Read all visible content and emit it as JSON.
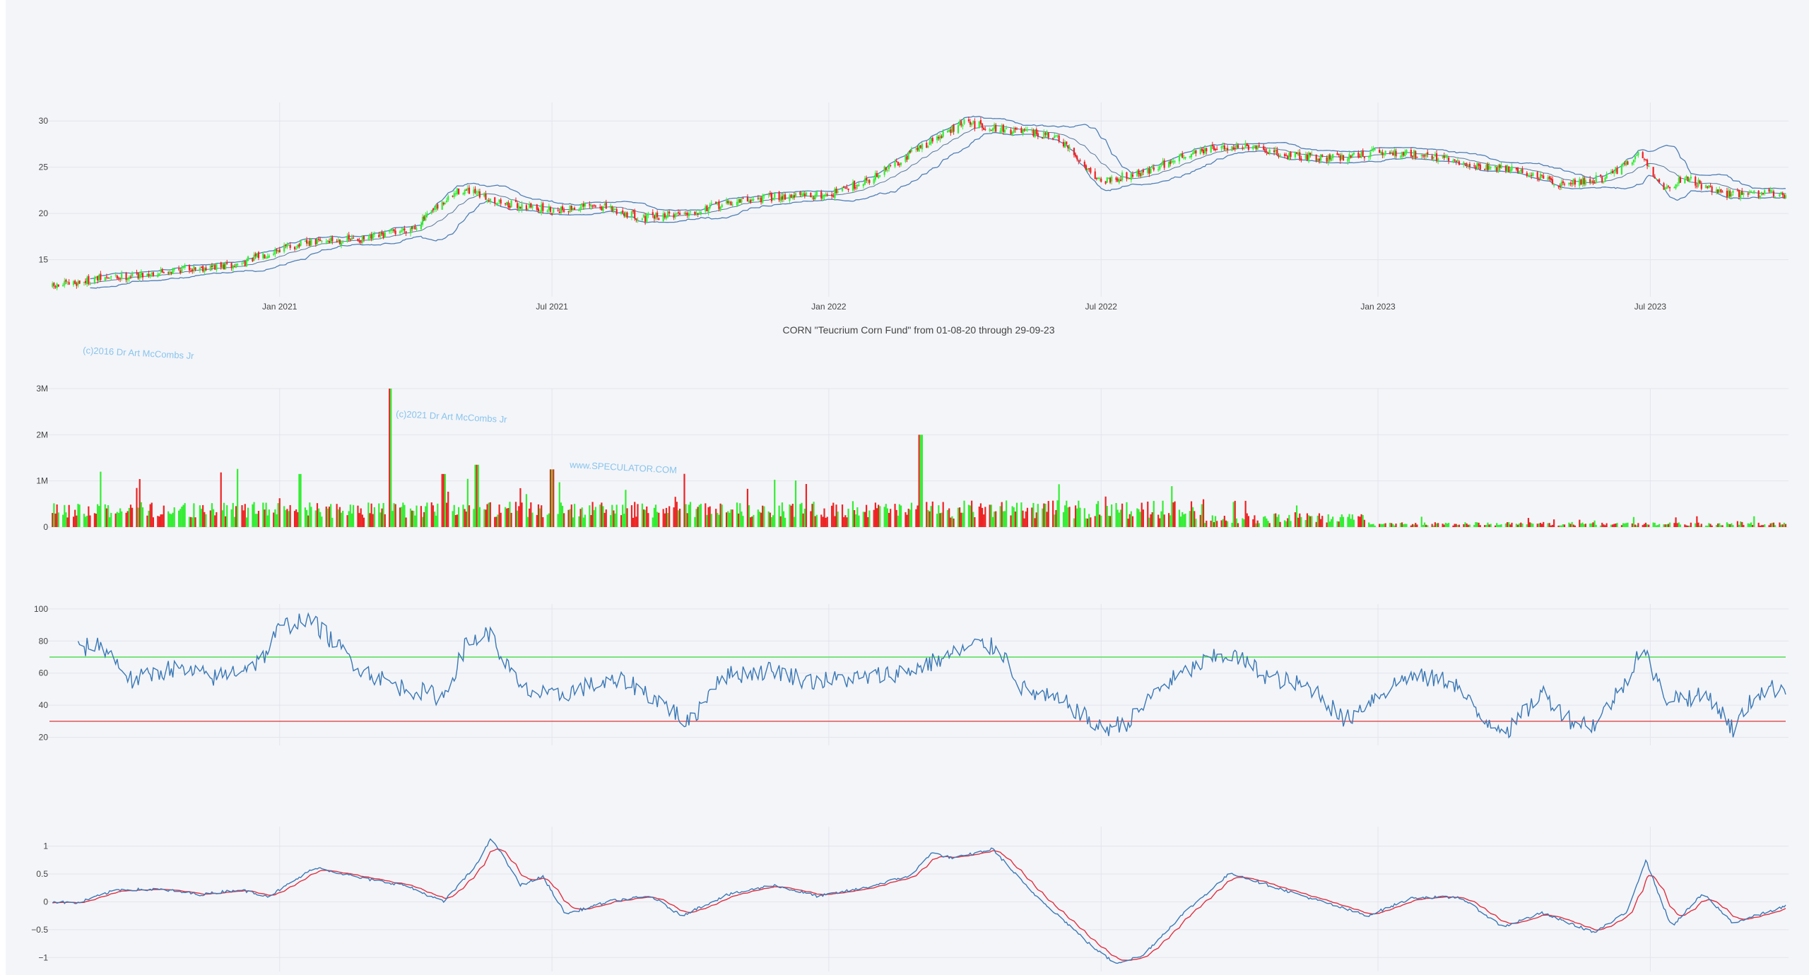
{
  "colors": {
    "plot_bg": "#f4f5f9",
    "grid": "#e3e5ec",
    "axis_text": "#444444",
    "up": "#33ee33",
    "down": "#ee2222",
    "band": "#4f7fb5",
    "line": "#3a78b5",
    "signal": "#e03040",
    "overbought": "#55dd55",
    "oversold": "#e05555",
    "watermark": "#88c4ec"
  },
  "title": "CORN \"Teucrium Corn Fund\" from 01-08-20 through 29-09-23",
  "watermarks": [
    "(c)2016 Dr Art McCombs Jr",
    "(c)2021 Dr Art McCombs Jr",
    "www.SPECULATOR.COM"
  ],
  "chart_data": [
    {
      "type": "candlestick",
      "name": "price",
      "x_range": [
        "2020-08-01",
        "2023-09-29"
      ],
      "x_ticks": [
        {
          "date": "2021-01-01",
          "label": "Jan 2021"
        },
        {
          "date": "2021-07-01",
          "label": "Jul 2021"
        },
        {
          "date": "2022-01-01",
          "label": "Jan 2022"
        },
        {
          "date": "2022-07-01",
          "label": "Jul 2022"
        },
        {
          "date": "2023-01-01",
          "label": "Jan 2023"
        },
        {
          "date": "2023-07-01",
          "label": "Jul 2023"
        }
      ],
      "y_range": [
        11,
        32
      ],
      "y_ticks": [
        15,
        20,
        25,
        30
      ],
      "close_anchors": [
        [
          "2020-08-01",
          12.0
        ],
        [
          "2020-09-01",
          12.9
        ],
        [
          "2020-10-01",
          13.4
        ],
        [
          "2020-11-01",
          14.1
        ],
        [
          "2020-12-01",
          14.3
        ],
        [
          "2021-01-01",
          16.2
        ],
        [
          "2021-02-01",
          17.1
        ],
        [
          "2021-03-01",
          17.2
        ],
        [
          "2021-04-01",
          18.6
        ],
        [
          "2021-05-01",
          22.6
        ],
        [
          "2021-06-01",
          21.0
        ],
        [
          "2021-07-01",
          20.4
        ],
        [
          "2021-08-01",
          20.8
        ],
        [
          "2021-09-01",
          19.5
        ],
        [
          "2021-10-01",
          20.2
        ],
        [
          "2021-11-01",
          21.3
        ],
        [
          "2021-12-01",
          21.9
        ],
        [
          "2022-01-01",
          22.0
        ],
        [
          "2022-02-01",
          24.0
        ],
        [
          "2022-03-01",
          27.0
        ],
        [
          "2022-04-01",
          29.8
        ],
        [
          "2022-05-01",
          29.0
        ],
        [
          "2022-06-01",
          28.2
        ],
        [
          "2022-07-01",
          23.5
        ],
        [
          "2022-08-01",
          24.6
        ],
        [
          "2022-09-01",
          26.7
        ],
        [
          "2022-10-01",
          27.3
        ],
        [
          "2022-11-01",
          26.3
        ],
        [
          "2022-12-01",
          26.0
        ],
        [
          "2023-01-01",
          26.6
        ],
        [
          "2023-02-01",
          26.4
        ],
        [
          "2023-03-01",
          25.2
        ],
        [
          "2023-04-01",
          24.8
        ],
        [
          "2023-05-01",
          23.2
        ],
        [
          "2023-06-01",
          23.8
        ],
        [
          "2023-06-25",
          26.5
        ],
        [
          "2023-07-10",
          22.6
        ],
        [
          "2023-07-25",
          23.9
        ],
        [
          "2023-08-15",
          22.2
        ],
        [
          "2023-09-29",
          22.1
        ]
      ]
    },
    {
      "type": "bar",
      "name": "volume",
      "y_range": [
        0,
        3000000
      ],
      "y_ticks": [
        {
          "v": 0,
          "label": "0"
        },
        {
          "v": 1000000,
          "label": "1M"
        },
        {
          "v": 2000000,
          "label": "2M"
        },
        {
          "v": 3000000,
          "label": "3M"
        }
      ],
      "spikes": [
        [
          "2021-03-15",
          3000000
        ],
        [
          "2022-03-03",
          2000000
        ],
        [
          "2021-05-12",
          1350000
        ],
        [
          "2021-07-01",
          1250000
        ],
        [
          "2021-01-15",
          1150000
        ],
        [
          "2020-09-05",
          1200000
        ],
        [
          "2020-12-05",
          1260000
        ],
        [
          "2021-04-20",
          1150000
        ]
      ]
    },
    {
      "type": "line",
      "name": "rsi",
      "y_range": [
        15,
        103
      ],
      "y_ticks": [
        20,
        40,
        60,
        80,
        100
      ],
      "overbought": 70,
      "oversold": 30,
      "anchors": [
        [
          "2020-08-20",
          75
        ],
        [
          "2020-09-05",
          78
        ],
        [
          "2020-09-25",
          55
        ],
        [
          "2020-10-20",
          63
        ],
        [
          "2020-11-20",
          57
        ],
        [
          "2020-12-20",
          68
        ],
        [
          "2021-01-01",
          88
        ],
        [
          "2021-01-20",
          95
        ],
        [
          "2021-02-05",
          80
        ],
        [
          "2021-02-25",
          62
        ],
        [
          "2021-03-20",
          52
        ],
        [
          "2021-04-20",
          45
        ],
        [
          "2021-05-05",
          78
        ],
        [
          "2021-05-20",
          85
        ],
        [
          "2021-06-10",
          50
        ],
        [
          "2021-07-01",
          45
        ],
        [
          "2021-07-25",
          52
        ],
        [
          "2021-08-20",
          55
        ],
        [
          "2021-09-15",
          40
        ],
        [
          "2021-09-30",
          28
        ],
        [
          "2021-10-20",
          58
        ],
        [
          "2021-11-25",
          62
        ],
        [
          "2021-12-20",
          55
        ],
        [
          "2022-01-25",
          57
        ],
        [
          "2022-02-25",
          62
        ],
        [
          "2022-03-20",
          70
        ],
        [
          "2022-04-10",
          78
        ],
        [
          "2022-04-25",
          75
        ],
        [
          "2022-05-10",
          50
        ],
        [
          "2022-06-10",
          40
        ],
        [
          "2022-07-01",
          25
        ],
        [
          "2022-07-20",
          30
        ],
        [
          "2022-08-10",
          52
        ],
        [
          "2022-09-10",
          68
        ],
        [
          "2022-09-25",
          72
        ],
        [
          "2022-10-20",
          58
        ],
        [
          "2022-11-20",
          50
        ],
        [
          "2022-12-10",
          30
        ],
        [
          "2022-12-25",
          42
        ],
        [
          "2023-01-20",
          58
        ],
        [
          "2023-02-20",
          55
        ],
        [
          "2023-03-10",
          32
        ],
        [
          "2023-03-30",
          25
        ],
        [
          "2023-04-20",
          48
        ],
        [
          "2023-05-10",
          30
        ],
        [
          "2023-05-25",
          28
        ],
        [
          "2023-06-15",
          55
        ],
        [
          "2023-06-25",
          78
        ],
        [
          "2023-07-10",
          45
        ],
        [
          "2023-08-10",
          45
        ],
        [
          "2023-08-25",
          25
        ],
        [
          "2023-09-10",
          48
        ],
        [
          "2023-09-29",
          52
        ]
      ]
    },
    {
      "type": "line",
      "name": "macd",
      "y_range": [
        -1.25,
        1.35
      ],
      "y_ticks": [
        {
          "v": 1,
          "label": "1"
        },
        {
          "v": 0.5,
          "label": "0.5"
        },
        {
          "v": 0,
          "label": "0"
        },
        {
          "v": -0.5,
          "label": "−0.5"
        },
        {
          "v": -1,
          "label": "−1"
        }
      ],
      "anchors": [
        [
          "2020-08-01",
          0.0
        ],
        [
          "2020-08-20",
          -0.02
        ],
        [
          "2020-09-15",
          0.22
        ],
        [
          "2020-10-15",
          0.22
        ],
        [
          "2020-11-10",
          0.13
        ],
        [
          "2020-12-05",
          0.22
        ],
        [
          "2020-12-25",
          0.1
        ],
        [
          "2021-01-25",
          0.62
        ],
        [
          "2021-02-25",
          0.42
        ],
        [
          "2021-03-25",
          0.3
        ],
        [
          "2021-04-20",
          0.0
        ],
        [
          "2021-05-10",
          0.6
        ],
        [
          "2021-05-22",
          1.15
        ],
        [
          "2021-06-10",
          0.3
        ],
        [
          "2021-06-25",
          0.45
        ],
        [
          "2021-07-10",
          -0.22
        ],
        [
          "2021-08-10",
          0.02
        ],
        [
          "2021-09-05",
          0.1
        ],
        [
          "2021-09-25",
          -0.25
        ],
        [
          "2021-10-25",
          0.12
        ],
        [
          "2021-11-25",
          0.3
        ],
        [
          "2021-12-25",
          0.1
        ],
        [
          "2022-01-25",
          0.25
        ],
        [
          "2022-02-25",
          0.48
        ],
        [
          "2022-03-10",
          0.88
        ],
        [
          "2022-03-25",
          0.78
        ],
        [
          "2022-04-20",
          0.95
        ],
        [
          "2022-05-15",
          0.2
        ],
        [
          "2022-06-05",
          -0.3
        ],
        [
          "2022-06-25",
          -0.8
        ],
        [
          "2022-07-10",
          -1.1
        ],
        [
          "2022-07-28",
          -0.98
        ],
        [
          "2022-08-25",
          -0.2
        ],
        [
          "2022-09-25",
          0.52
        ],
        [
          "2022-10-20",
          0.3
        ],
        [
          "2022-11-25",
          0.0
        ],
        [
          "2022-12-25",
          -0.25
        ],
        [
          "2023-01-25",
          0.08
        ],
        [
          "2023-02-25",
          0.08
        ],
        [
          "2023-03-25",
          -0.45
        ],
        [
          "2023-04-20",
          -0.2
        ],
        [
          "2023-05-25",
          -0.55
        ],
        [
          "2023-06-15",
          -0.2
        ],
        [
          "2023-06-28",
          0.75
        ],
        [
          "2023-07-15",
          -0.45
        ],
        [
          "2023-08-05",
          0.15
        ],
        [
          "2023-08-25",
          -0.38
        ],
        [
          "2023-09-29",
          -0.08
        ]
      ]
    }
  ]
}
